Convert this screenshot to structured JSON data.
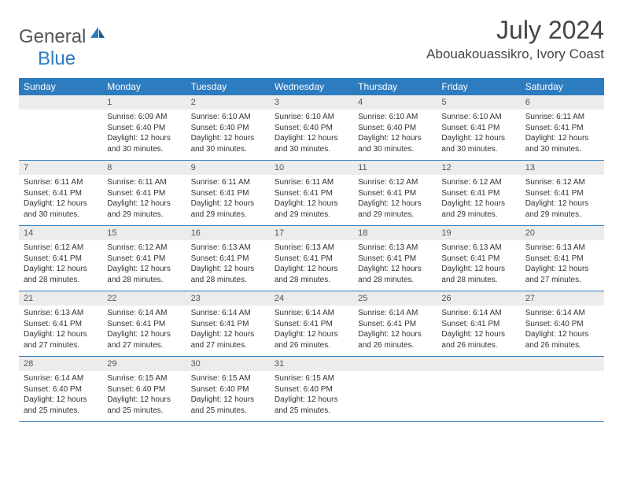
{
  "logo": {
    "general": "General",
    "blue": "Blue"
  },
  "title": "July 2024",
  "location": "Abouakouassikro, Ivory Coast",
  "colors": {
    "header_bg": "#2e7cc0",
    "header_fg": "#ffffff",
    "daynum_bg": "#ececec",
    "text": "#333333",
    "logo_blue": "#2e7cc0"
  },
  "dayNames": [
    "Sunday",
    "Monday",
    "Tuesday",
    "Wednesday",
    "Thursday",
    "Friday",
    "Saturday"
  ],
  "weeks": [
    [
      {
        "n": "",
        "sunrise": "",
        "sunset": "",
        "daylight": ""
      },
      {
        "n": "1",
        "sunrise": "Sunrise: 6:09 AM",
        "sunset": "Sunset: 6:40 PM",
        "daylight": "Daylight: 12 hours and 30 minutes."
      },
      {
        "n": "2",
        "sunrise": "Sunrise: 6:10 AM",
        "sunset": "Sunset: 6:40 PM",
        "daylight": "Daylight: 12 hours and 30 minutes."
      },
      {
        "n": "3",
        "sunrise": "Sunrise: 6:10 AM",
        "sunset": "Sunset: 6:40 PM",
        "daylight": "Daylight: 12 hours and 30 minutes."
      },
      {
        "n": "4",
        "sunrise": "Sunrise: 6:10 AM",
        "sunset": "Sunset: 6:40 PM",
        "daylight": "Daylight: 12 hours and 30 minutes."
      },
      {
        "n": "5",
        "sunrise": "Sunrise: 6:10 AM",
        "sunset": "Sunset: 6:41 PM",
        "daylight": "Daylight: 12 hours and 30 minutes."
      },
      {
        "n": "6",
        "sunrise": "Sunrise: 6:11 AM",
        "sunset": "Sunset: 6:41 PM",
        "daylight": "Daylight: 12 hours and 30 minutes."
      }
    ],
    [
      {
        "n": "7",
        "sunrise": "Sunrise: 6:11 AM",
        "sunset": "Sunset: 6:41 PM",
        "daylight": "Daylight: 12 hours and 30 minutes."
      },
      {
        "n": "8",
        "sunrise": "Sunrise: 6:11 AM",
        "sunset": "Sunset: 6:41 PM",
        "daylight": "Daylight: 12 hours and 29 minutes."
      },
      {
        "n": "9",
        "sunrise": "Sunrise: 6:11 AM",
        "sunset": "Sunset: 6:41 PM",
        "daylight": "Daylight: 12 hours and 29 minutes."
      },
      {
        "n": "10",
        "sunrise": "Sunrise: 6:11 AM",
        "sunset": "Sunset: 6:41 PM",
        "daylight": "Daylight: 12 hours and 29 minutes."
      },
      {
        "n": "11",
        "sunrise": "Sunrise: 6:12 AM",
        "sunset": "Sunset: 6:41 PM",
        "daylight": "Daylight: 12 hours and 29 minutes."
      },
      {
        "n": "12",
        "sunrise": "Sunrise: 6:12 AM",
        "sunset": "Sunset: 6:41 PM",
        "daylight": "Daylight: 12 hours and 29 minutes."
      },
      {
        "n": "13",
        "sunrise": "Sunrise: 6:12 AM",
        "sunset": "Sunset: 6:41 PM",
        "daylight": "Daylight: 12 hours and 29 minutes."
      }
    ],
    [
      {
        "n": "14",
        "sunrise": "Sunrise: 6:12 AM",
        "sunset": "Sunset: 6:41 PM",
        "daylight": "Daylight: 12 hours and 28 minutes."
      },
      {
        "n": "15",
        "sunrise": "Sunrise: 6:12 AM",
        "sunset": "Sunset: 6:41 PM",
        "daylight": "Daylight: 12 hours and 28 minutes."
      },
      {
        "n": "16",
        "sunrise": "Sunrise: 6:13 AM",
        "sunset": "Sunset: 6:41 PM",
        "daylight": "Daylight: 12 hours and 28 minutes."
      },
      {
        "n": "17",
        "sunrise": "Sunrise: 6:13 AM",
        "sunset": "Sunset: 6:41 PM",
        "daylight": "Daylight: 12 hours and 28 minutes."
      },
      {
        "n": "18",
        "sunrise": "Sunrise: 6:13 AM",
        "sunset": "Sunset: 6:41 PM",
        "daylight": "Daylight: 12 hours and 28 minutes."
      },
      {
        "n": "19",
        "sunrise": "Sunrise: 6:13 AM",
        "sunset": "Sunset: 6:41 PM",
        "daylight": "Daylight: 12 hours and 28 minutes."
      },
      {
        "n": "20",
        "sunrise": "Sunrise: 6:13 AM",
        "sunset": "Sunset: 6:41 PM",
        "daylight": "Daylight: 12 hours and 27 minutes."
      }
    ],
    [
      {
        "n": "21",
        "sunrise": "Sunrise: 6:13 AM",
        "sunset": "Sunset: 6:41 PM",
        "daylight": "Daylight: 12 hours and 27 minutes."
      },
      {
        "n": "22",
        "sunrise": "Sunrise: 6:14 AM",
        "sunset": "Sunset: 6:41 PM",
        "daylight": "Daylight: 12 hours and 27 minutes."
      },
      {
        "n": "23",
        "sunrise": "Sunrise: 6:14 AM",
        "sunset": "Sunset: 6:41 PM",
        "daylight": "Daylight: 12 hours and 27 minutes."
      },
      {
        "n": "24",
        "sunrise": "Sunrise: 6:14 AM",
        "sunset": "Sunset: 6:41 PM",
        "daylight": "Daylight: 12 hours and 26 minutes."
      },
      {
        "n": "25",
        "sunrise": "Sunrise: 6:14 AM",
        "sunset": "Sunset: 6:41 PM",
        "daylight": "Daylight: 12 hours and 26 minutes."
      },
      {
        "n": "26",
        "sunrise": "Sunrise: 6:14 AM",
        "sunset": "Sunset: 6:41 PM",
        "daylight": "Daylight: 12 hours and 26 minutes."
      },
      {
        "n": "27",
        "sunrise": "Sunrise: 6:14 AM",
        "sunset": "Sunset: 6:40 PM",
        "daylight": "Daylight: 12 hours and 26 minutes."
      }
    ],
    [
      {
        "n": "28",
        "sunrise": "Sunrise: 6:14 AM",
        "sunset": "Sunset: 6:40 PM",
        "daylight": "Daylight: 12 hours and 25 minutes."
      },
      {
        "n": "29",
        "sunrise": "Sunrise: 6:15 AM",
        "sunset": "Sunset: 6:40 PM",
        "daylight": "Daylight: 12 hours and 25 minutes."
      },
      {
        "n": "30",
        "sunrise": "Sunrise: 6:15 AM",
        "sunset": "Sunset: 6:40 PM",
        "daylight": "Daylight: 12 hours and 25 minutes."
      },
      {
        "n": "31",
        "sunrise": "Sunrise: 6:15 AM",
        "sunset": "Sunset: 6:40 PM",
        "daylight": "Daylight: 12 hours and 25 minutes."
      },
      {
        "n": "",
        "sunrise": "",
        "sunset": "",
        "daylight": ""
      },
      {
        "n": "",
        "sunrise": "",
        "sunset": "",
        "daylight": ""
      },
      {
        "n": "",
        "sunrise": "",
        "sunset": "",
        "daylight": ""
      }
    ]
  ]
}
